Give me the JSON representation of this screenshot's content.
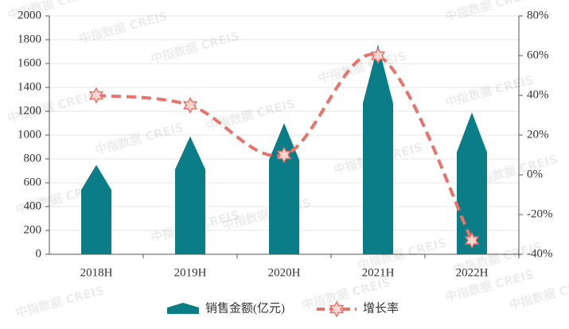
{
  "chart_data": {
    "type": "bar_line",
    "watermark": "中指数据 CREIS",
    "categories": [
      "2018H",
      "2019H",
      "2020H",
      "2021H",
      "2022H"
    ],
    "series": [
      {
        "name": "销售金额(亿元)",
        "color": "#0a7d86",
        "type": "bar",
        "values": [
          750,
          990,
          1100,
          1760,
          1190
        ]
      },
      {
        "name": "增长率",
        "color": "#e8736a",
        "type": "line",
        "axis": "y2",
        "values": [
          40,
          35,
          10,
          60,
          -33
        ]
      }
    ],
    "ylim": [
      0,
      2000
    ],
    "yticks": [
      0,
      200,
      400,
      600,
      800,
      1000,
      1200,
      1400,
      1600,
      1800,
      2000
    ],
    "y2lim": [
      -40,
      80
    ],
    "y2ticks": [
      {
        "value": -40,
        "label": "-40%"
      },
      {
        "value": -20,
        "label": "-20%"
      },
      {
        "value": 0,
        "label": "0%"
      },
      {
        "value": 20,
        "label": "20%"
      },
      {
        "value": 40,
        "label": "40%"
      },
      {
        "value": 60,
        "label": "60%"
      },
      {
        "value": 80,
        "label": "80%"
      }
    ],
    "grid": true
  }
}
